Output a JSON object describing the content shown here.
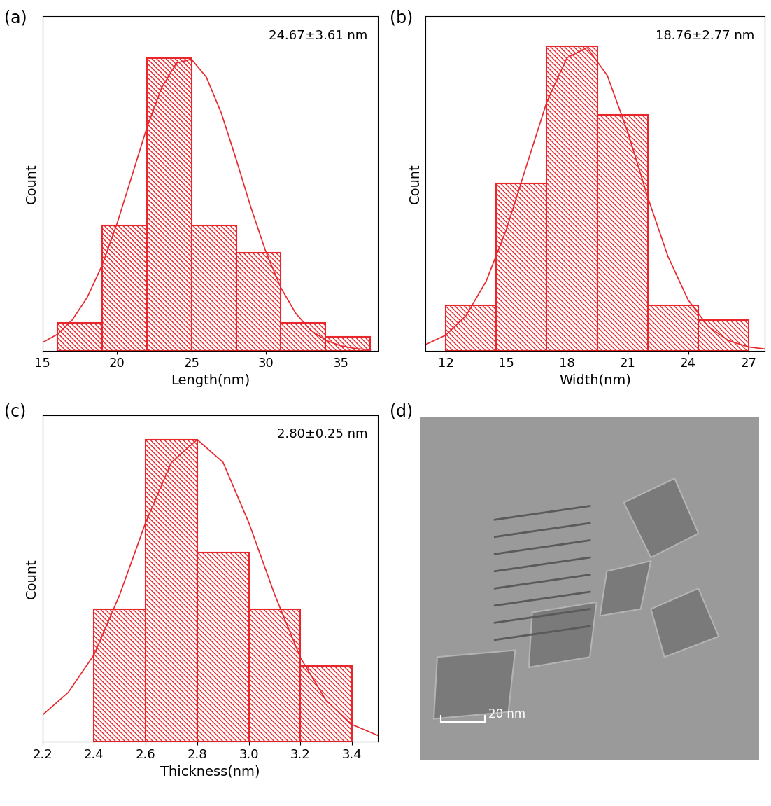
{
  "chart_data": [
    {
      "type": "histogram",
      "label": "(a)",
      "annotation": "24.67±3.61 nm",
      "x_label": "Length(nm)",
      "y_label": "Count",
      "color": "#e8262b",
      "bins": [
        16,
        19,
        22,
        25,
        28,
        31,
        34,
        37
      ],
      "values": [
        2,
        9,
        21,
        9,
        7,
        2,
        1
      ],
      "xlim": [
        15,
        37.5
      ],
      "xticks": [
        15,
        20,
        25,
        30,
        35
      ],
      "ylim": [
        0,
        24
      ],
      "tick_labels": "x",
      "fit_curve": {
        "x": [
          15,
          16,
          17,
          18,
          19,
          20,
          21,
          22,
          23,
          24,
          25,
          26,
          27,
          28,
          29,
          30,
          31,
          32,
          33,
          34,
          35,
          36,
          37
        ],
        "values": [
          0.58,
          1.17,
          2.2,
          3.81,
          6.11,
          9.09,
          12.52,
          15.97,
          18.87,
          20.64,
          20.91,
          19.62,
          17.05,
          13.72,
          10.23,
          7.06,
          4.51,
          2.67,
          1.46,
          0.75,
          0.35,
          0.15,
          0.06
        ]
      }
    },
    {
      "type": "histogram",
      "label": "(b)",
      "annotation": "18.76±2.77 nm",
      "x_label": "Width(nm)",
      "y_label": "Count",
      "color": "#e8262b",
      "bins": [
        12,
        14.5,
        17,
        19.5,
        22,
        24.5,
        27
      ],
      "values": [
        3,
        11,
        20,
        15.5,
        3,
        2
      ],
      "xlim": [
        11,
        27.8
      ],
      "xticks": [
        12,
        15,
        18,
        21,
        24,
        27
      ],
      "ylim": [
        0,
        22
      ],
      "tick_labels": "x",
      "fit_curve": {
        "x": [
          11,
          12,
          13,
          14,
          15,
          16,
          17,
          18,
          19,
          20,
          21,
          22,
          23,
          24,
          25,
          26,
          27,
          28
        ],
        "values": [
          0.4,
          1.02,
          2.3,
          4.57,
          7.96,
          12.18,
          16.35,
          19.26,
          19.93,
          18.09,
          14.42,
          10.09,
          6.2,
          3.34,
          1.58,
          0.66,
          0.24,
          0.08
        ]
      }
    },
    {
      "type": "histogram",
      "label": "(c)",
      "annotation": "2.80±0.25 nm",
      "x_label": "Thickness(nm)",
      "y_label": "Count",
      "color": "#e8262b",
      "bins": [
        2.4,
        2.6,
        2.8,
        3.0,
        3.2,
        3.4
      ],
      "values": [
        7,
        16,
        10,
        7,
        4
      ],
      "xlim": [
        2.2,
        3.5
      ],
      "xticks": [
        2.2,
        2.4,
        2.6,
        2.8,
        3.0,
        3.2,
        3.4
      ],
      "ylim": [
        0,
        17.3
      ],
      "tick_labels": "x",
      "fit_curve": {
        "x": [
          2.2,
          2.3,
          2.4,
          2.5,
          2.6,
          2.7,
          2.8,
          2.9,
          3.0,
          3.1,
          3.2,
          3.3,
          3.4,
          3.5
        ],
        "values": [
          1.4,
          2.6,
          4.6,
          7.8,
          11.6,
          14.8,
          16,
          14.8,
          11.6,
          7.8,
          4.45,
          2.17,
          0.9,
          0.32
        ]
      }
    }
  ],
  "image": {
    "label": "(d)",
    "scale_bar": "20 nm"
  }
}
